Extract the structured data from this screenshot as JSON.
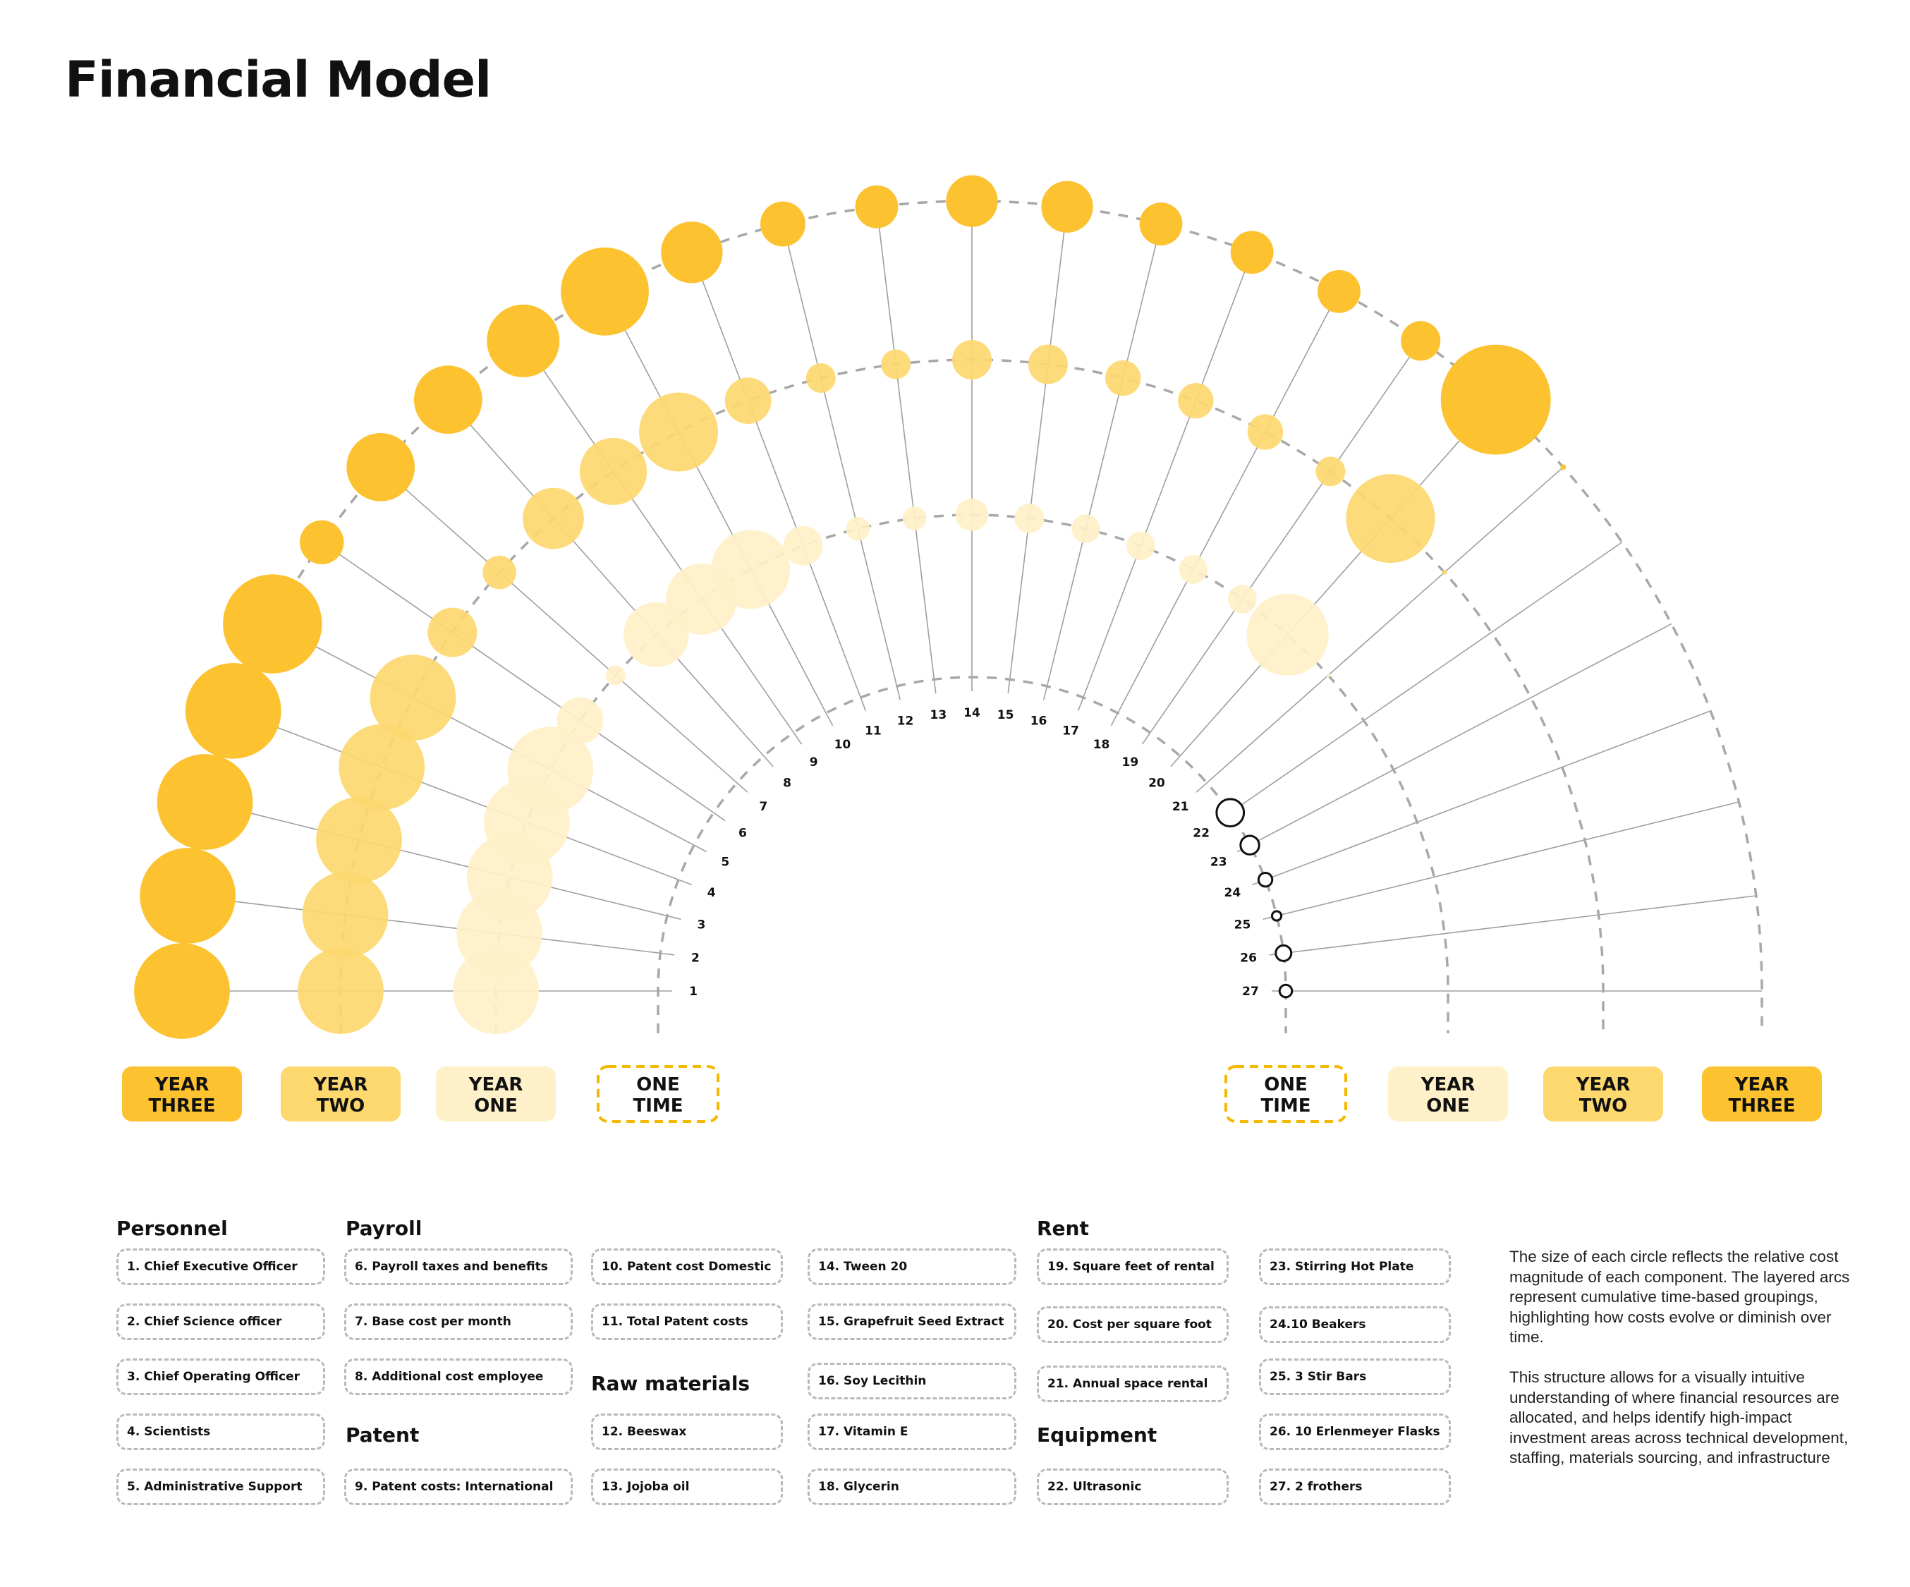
{
  "title": "Financial Model",
  "colors": {
    "year_three": "#fcc22f",
    "year_two": "#fdd86f",
    "year_one": "#fef0c8",
    "one_time_border": "#f5b800",
    "line": "#9f9f9f",
    "arc": "#a8a8a8"
  },
  "ring_labels": {
    "left": [
      {
        "text": [
          "YEAR",
          "THREE"
        ],
        "style": "year_three"
      },
      {
        "text": [
          "YEAR",
          "TWO"
        ],
        "style": "year_two"
      },
      {
        "text": [
          "YEAR",
          "ONE"
        ],
        "style": "year_one"
      },
      {
        "text": [
          "ONE",
          "TIME"
        ],
        "style": "one_time"
      }
    ],
    "right": [
      {
        "text": [
          "ONE",
          "TIME"
        ],
        "style": "one_time"
      },
      {
        "text": [
          "YEAR",
          "ONE"
        ],
        "style": "year_one"
      },
      {
        "text": [
          "YEAR",
          "TWO"
        ],
        "style": "year_two"
      },
      {
        "text": [
          "YEAR",
          "THREE"
        ],
        "style": "year_three"
      }
    ]
  },
  "component_numbers": [
    "1",
    "2",
    "3",
    "4",
    "5",
    "6",
    "7",
    "8",
    "9",
    "10",
    "11",
    "12",
    "13",
    "14",
    "15",
    "16",
    "17",
    "18",
    "19",
    "20",
    "21",
    "22",
    "23",
    "24",
    "25",
    "26",
    "27"
  ],
  "cost_magnitudes": [
    {
      "id": 1,
      "year_three": 0.87,
      "year_two": 0.87,
      "year_one": 0.87,
      "one_time": 0
    },
    {
      "id": 2,
      "year_three": 0.87,
      "year_two": 0.87,
      "year_one": 0.87,
      "one_time": 0
    },
    {
      "id": 3,
      "year_three": 0.87,
      "year_two": 0.87,
      "year_one": 0.87,
      "one_time": 0
    },
    {
      "id": 4,
      "year_three": 0.87,
      "year_two": 0.87,
      "year_one": 0.87,
      "one_time": 0
    },
    {
      "id": 5,
      "year_three": 0.9,
      "year_two": 0.87,
      "year_one": 0.87,
      "one_time": 0
    },
    {
      "id": 6,
      "year_three": 0.4,
      "year_two": 0.5,
      "year_one": 0.47,
      "one_time": 0
    },
    {
      "id": 7,
      "year_three": 0.62,
      "year_two": 0.34,
      "year_one": 0.2,
      "one_time": 0
    },
    {
      "id": 8,
      "year_three": 0.62,
      "year_two": 0.62,
      "year_one": 0.66,
      "one_time": 0
    },
    {
      "id": 9,
      "year_three": 0.66,
      "year_two": 0.68,
      "year_one": 0.72,
      "one_time": 0
    },
    {
      "id": 10,
      "year_three": 0.8,
      "year_two": 0.8,
      "year_one": 0.8,
      "one_time": 0
    },
    {
      "id": 11,
      "year_three": 0.56,
      "year_two": 0.47,
      "year_one": 0.4,
      "one_time": 0
    },
    {
      "id": 12,
      "year_three": 0.41,
      "year_two": 0.3,
      "year_one": 0.24,
      "one_time": 0
    },
    {
      "id": 13,
      "year_three": 0.39,
      "year_two": 0.3,
      "year_one": 0.24,
      "one_time": 0
    },
    {
      "id": 14,
      "year_three": 0.47,
      "year_two": 0.4,
      "year_one": 0.33,
      "one_time": 0
    },
    {
      "id": 15,
      "year_three": 0.47,
      "year_two": 0.4,
      "year_one": 0.3,
      "one_time": 0
    },
    {
      "id": 16,
      "year_three": 0.39,
      "year_two": 0.36,
      "year_one": 0.29,
      "one_time": 0
    },
    {
      "id": 17,
      "year_three": 0.39,
      "year_two": 0.36,
      "year_one": 0.29,
      "one_time": 0
    },
    {
      "id": 18,
      "year_three": 0.39,
      "year_two": 0.36,
      "year_one": 0.29,
      "one_time": 0
    },
    {
      "id": 19,
      "year_three": 0.36,
      "year_two": 0.3,
      "year_one": 0.29,
      "one_time": 0
    },
    {
      "id": 20,
      "year_three": 1.0,
      "year_two": 0.9,
      "year_one": 0.83,
      "one_time": 0
    },
    {
      "id": 21,
      "year_three": 0.05,
      "year_two": 0.05,
      "year_one": 0.04,
      "one_time": 0
    },
    {
      "id": 22,
      "year_three": 0,
      "year_two": 0,
      "year_one": 0,
      "one_time": 0.44
    },
    {
      "id": 23,
      "year_three": 0,
      "year_two": 0,
      "year_one": 0,
      "one_time": 0.3
    },
    {
      "id": 24,
      "year_three": 0,
      "year_two": 0,
      "year_one": 0,
      "one_time": 0.22
    },
    {
      "id": 25,
      "year_three": 0,
      "year_two": 0,
      "year_one": 0,
      "one_time": 0.15
    },
    {
      "id": 26,
      "year_three": 0,
      "year_two": 0,
      "year_one": 0,
      "one_time": 0.25
    },
    {
      "id": 27,
      "year_three": 0,
      "year_two": 0,
      "year_one": 0,
      "one_time": 0.2
    }
  ],
  "legend": {
    "groups": {
      "personnel": "Personnel",
      "payroll": "Payroll",
      "patent": "Patent",
      "raw_materials": "Raw materials",
      "rent": "Rent",
      "equipment": "Equipment"
    },
    "items": [
      "1. Chief Executive Officer",
      "2. Chief Science officer",
      "3. Chief Operating Officer",
      "4. Scientists",
      "5. Administrative Support",
      "6. Payroll taxes and benefits",
      "7. Base cost per month",
      "8. Additional cost employee",
      "9. Patent costs: International",
      "10. Patent cost Domestic",
      "11. Total Patent costs",
      "12. Beeswax",
      "13. Jojoba oil",
      "14. Tween 20",
      "15. Grapefruit Seed Extract",
      "16. Soy Lecithin",
      "17. Vitamin E",
      "18. Glycerin",
      "19. Square feet of rental",
      "20. Cost per square foot",
      "21. Annual space rental",
      "22. Ultrasonic",
      "23. Stirring Hot Plate",
      "24.10 Beakers",
      "25. 3 Stir Bars",
      "26. 10 Erlenmeyer Flasks",
      "27. 2 frothers"
    ]
  },
  "description": [
    "The size of each circle reflects the relative cost magnitude of each component. The layered arcs represent cumulative time-based groupings, highlighting how costs evolve or diminish over time.",
    "This structure allows for a visually intuitive understanding of where financial resources are allocated, and helps identify high-impact investment areas across technical development, staffing, materials sourcing, and infrastructure"
  ]
}
